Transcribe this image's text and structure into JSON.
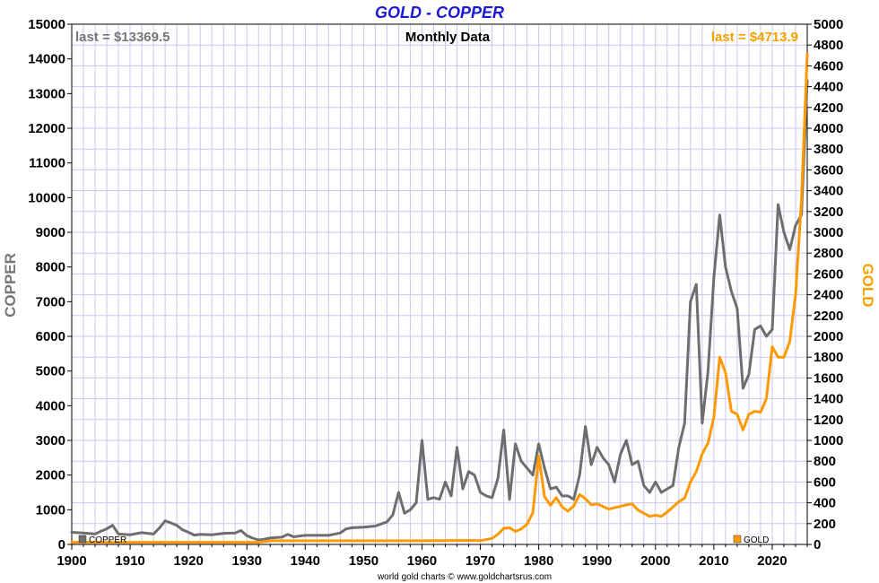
{
  "chart_data": {
    "type": "line",
    "title": "GOLD - COPPER",
    "subtitle": "Monthly Data",
    "credit": "world gold charts © www.goldchartsrus.com",
    "x_range": [
      1900,
      2026
    ],
    "x_ticks": [
      1900,
      1910,
      1920,
      1930,
      1940,
      1950,
      1960,
      1970,
      1980,
      1990,
      2000,
      2010,
      2020
    ],
    "grid": true,
    "left_axis": {
      "label": "COPPER",
      "range": [
        0,
        15000
      ],
      "ticks": [
        0,
        1000,
        2000,
        3000,
        4000,
        5000,
        6000,
        7000,
        8000,
        9000,
        10000,
        11000,
        12000,
        13000,
        14000,
        15000
      ]
    },
    "right_axis": {
      "label": "GOLD",
      "range": [
        0,
        5000
      ],
      "ticks": [
        0,
        200,
        400,
        600,
        800,
        1000,
        1200,
        1400,
        1600,
        1800,
        2000,
        2200,
        2400,
        2600,
        2800,
        3000,
        3200,
        3400,
        3600,
        3800,
        4000,
        4200,
        4400,
        4600,
        4800,
        5000
      ]
    },
    "series": [
      {
        "name": "COPPER",
        "axis": "left",
        "color": "#6e6e6e",
        "last_label": "last = $13369.5",
        "x": [
          1900,
          1902,
          1904,
          1905,
          1906,
          1907,
          1908,
          1910,
          1912,
          1914,
          1915,
          1916,
          1917,
          1918,
          1919,
          1920,
          1921,
          1922,
          1924,
          1926,
          1928,
          1929,
          1930,
          1931,
          1932,
          1933,
          1934,
          1936,
          1937,
          1938,
          1940,
          1942,
          1944,
          1946,
          1947,
          1948,
          1950,
          1952,
          1954,
          1955,
          1956,
          1957,
          1958,
          1959,
          1960,
          1961,
          1962,
          1963,
          1964,
          1965,
          1966,
          1967,
          1968,
          1969,
          1970,
          1971,
          1972,
          1973,
          1974,
          1975,
          1976,
          1977,
          1978,
          1979,
          1980,
          1981,
          1982,
          1983,
          1984,
          1985,
          1986,
          1987,
          1988,
          1989,
          1990,
          1991,
          1992,
          1993,
          1994,
          1995,
          1996,
          1997,
          1998,
          1999,
          2000,
          2001,
          2002,
          2003,
          2004,
          2005,
          2006,
          2007,
          2008,
          2009,
          2010,
          2011,
          2012,
          2013,
          2014,
          2015,
          2016,
          2017,
          2018,
          2019,
          2020,
          2021,
          2022,
          2023,
          2024,
          2025,
          2026
        ],
        "values": [
          350,
          330,
          300,
          380,
          450,
          550,
          300,
          280,
          340,
          300,
          470,
          680,
          620,
          550,
          420,
          350,
          270,
          290,
          280,
          320,
          330,
          400,
          250,
          180,
          130,
          150,
          190,
          210,
          290,
          220,
          260,
          260,
          260,
          330,
          450,
          480,
          500,
          530,
          650,
          850,
          1500,
          900,
          1000,
          1200,
          3000,
          1300,
          1350,
          1300,
          1800,
          1400,
          2800,
          1600,
          2100,
          2000,
          1500,
          1400,
          1350,
          1900,
          3300,
          1300,
          2900,
          2400,
          2200,
          2000,
          2900,
          2200,
          1600,
          1650,
          1400,
          1400,
          1300,
          2000,
          3400,
          2300,
          2800,
          2500,
          2300,
          1800,
          2600,
          3000,
          2300,
          2400,
          1700,
          1500,
          1800,
          1500,
          1600,
          1700,
          2800,
          3500,
          7000,
          7500,
          3500,
          5000,
          7700,
          9500,
          8000,
          7300,
          6800,
          4500,
          4900,
          6200,
          6300,
          6000,
          6200,
          9800,
          9000,
          8500,
          9200,
          9500,
          13369.5
        ]
      },
      {
        "name": "GOLD",
        "axis": "right",
        "color": "#ff9900",
        "last_label": "last = $4713.9",
        "x": [
          1900,
          1910,
          1920,
          1930,
          1932,
          1934,
          1940,
          1950,
          1960,
          1968,
          1970,
          1972,
          1973,
          1974,
          1975,
          1976,
          1977,
          1978,
          1979,
          1980,
          1981,
          1982,
          1983,
          1984,
          1985,
          1986,
          1987,
          1988,
          1989,
          1990,
          1992,
          1995,
          1996,
          1997,
          1999,
          2000,
          2001,
          2002,
          2003,
          2004,
          2005,
          2006,
          2007,
          2008,
          2009,
          2010,
          2011,
          2012,
          2013,
          2014,
          2015,
          2016,
          2017,
          2018,
          2019,
          2020,
          2021,
          2022,
          2023,
          2024,
          2025,
          2026
        ],
        "values": [
          20.67,
          20.67,
          20.67,
          20.67,
          20.67,
          35,
          35,
          35,
          35,
          39,
          36,
          58,
          97,
          154,
          160,
          125,
          148,
          193,
          306,
          850,
          460,
          376,
          450,
          360,
          320,
          370,
          480,
          440,
          380,
          390,
          340,
          380,
          390,
          330,
          270,
          280,
          270,
          310,
          360,
          410,
          445,
          600,
          700,
          870,
          975,
          1225,
          1800,
          1650,
          1280,
          1250,
          1100,
          1250,
          1280,
          1270,
          1400,
          1900,
          1800,
          1800,
          1950,
          2400,
          3300,
          4713.9
        ]
      }
    ]
  }
}
